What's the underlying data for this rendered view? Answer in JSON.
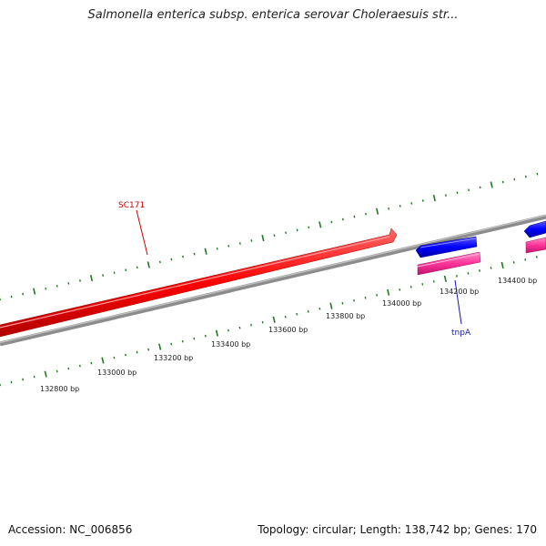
{
  "title": "Salmonella enterica subsp. enterica serovar Choleraesuis str...",
  "accession": "Accession: NC_006856",
  "summary": "Topology: circular; Length: 138,742 bp; Genes: 170",
  "features": [
    {
      "name": "SC171",
      "color": "#ff0000",
      "strand": "+"
    },
    {
      "name": "tnpA",
      "color": "#0000ff",
      "strand": "-"
    },
    {
      "name": "",
      "color": "#ff3399",
      "strand": "-"
    }
  ],
  "scale_labels": [
    "132800 bp",
    "133000 bp",
    "133200 bp",
    "133400 bp",
    "133600 bp",
    "133800 bp",
    "134000 bp",
    "134200 bp",
    "134400 bp"
  ],
  "colors": {
    "backbone": "#8c8c8c",
    "tick": "#1f7a1f",
    "forward_gene": "#ff0000",
    "reverse_gene": "#0000ff",
    "reverse_gene_2": "#ff3399",
    "label_sc171": "#cc0000",
    "label_tnpa": "#1a1aaa"
  }
}
